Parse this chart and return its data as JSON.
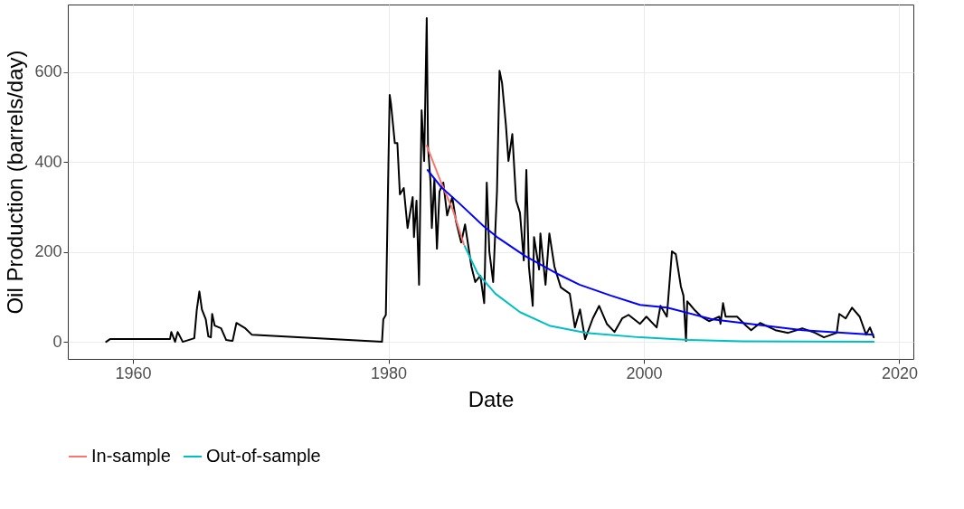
{
  "chart_data": {
    "type": "line",
    "xlabel": "Date",
    "ylabel": "Oil Production (barrels/day)",
    "xlim": [
      1954.9,
      2021.1
    ],
    "ylim": [
      -38,
      750
    ],
    "xticks": [
      1960,
      1980,
      2000,
      2020
    ],
    "yticks": [
      0,
      200,
      400,
      600
    ],
    "grid": true,
    "legend": "bottom",
    "series": [
      {
        "color": "#000000",
        "x": [
          1957.9,
          1958.2,
          1962.9,
          1963.0,
          1963.3,
          1963.5,
          1963.9,
          1964.8,
          1965.0,
          1965.2,
          1965.4,
          1965.7,
          1965.9,
          1966.1,
          1966.2,
          1966.4,
          1966.9,
          1967.3,
          1967.8,
          1968.1,
          1968.8,
          1969.3,
          1979.5,
          1979.6,
          1979.8,
          1980.0,
          1980.1,
          1980.2,
          1980.5,
          1980.7,
          1980.9,
          1981.2,
          1981.5,
          1981.9,
          1982.0,
          1982.2,
          1982.4,
          1982.6,
          1982.8,
          1983.0,
          1983.1,
          1983.3,
          1983.4,
          1983.6,
          1983.8,
          1984.0,
          1984.3,
          1984.6,
          1985.0,
          1985.3,
          1985.7,
          1986.0,
          1986.5,
          1986.8,
          1987.2,
          1987.5,
          1987.7,
          1987.9,
          1988.2,
          1988.5,
          1988.7,
          1988.9,
          1989.2,
          1989.4,
          1989.7,
          1990.0,
          1990.3,
          1990.6,
          1990.8,
          1991.0,
          1991.3,
          1991.4,
          1991.8,
          1991.9,
          1992.3,
          1992.6,
          1993.0,
          1993.5,
          1994.2,
          1994.6,
          1995.0,
          1995.4,
          1996.0,
          1996.5,
          1997.1,
          1997.7,
          1998.3,
          1998.8,
          1999.7,
          2000.2,
          2001.0,
          2001.3,
          2001.8,
          2002.2,
          2002.5,
          2002.9,
          2003.1,
          2003.3,
          2003.4,
          2004.0,
          2004.5,
          2005.1,
          2005.9,
          2006.0,
          2006.2,
          2006.4,
          2007.3,
          2008.0,
          2008.4,
          2009.1,
          2010.3,
          2011.3,
          2012.4,
          2013.4,
          2014.1,
          2015.1,
          2015.3,
          2015.8,
          2016.3,
          2016.9,
          2017.4,
          2017.7,
          2018.0
        ],
        "values": [
          0,
          6,
          6,
          22,
          0,
          22,
          0,
          8,
          72,
          112,
          72,
          50,
          12,
          10,
          62,
          36,
          30,
          4,
          2,
          42,
          30,
          16,
          0,
          50,
          60,
          394,
          549,
          529,
          442,
          442,
          328,
          342,
          253,
          322,
          233,
          314,
          127,
          515,
          402,
          720,
          434,
          354,
          253,
          362,
          207,
          334,
          354,
          281,
          322,
          267,
          221,
          261,
          167,
          133,
          147,
          86,
          354,
          201,
          133,
          334,
          603,
          575,
          482,
          402,
          462,
          314,
          287,
          181,
          382,
          167,
          80,
          233,
          161,
          241,
          127,
          241,
          167,
          121,
          107,
          32,
          72,
          6,
          52,
          80,
          40,
          22,
          52,
          60,
          40,
          56,
          32,
          80,
          56,
          201,
          195,
          123,
          103,
          2,
          90,
          70,
          56,
          46,
          56,
          40,
          86,
          56,
          56,
          36,
          26,
          42,
          26,
          20,
          30,
          20,
          10,
          20,
          62,
          52,
          76,
          56,
          16,
          32,
          10
        ]
      },
      {
        "name": "In-sample",
        "color": "#f8766d",
        "x": [
          1983.0,
          1984.13,
          1985.05,
          1985.9
        ],
        "values": [
          436,
          354,
          293,
          217
        ]
      },
      {
        "name": "Out-of-sample",
        "color": "#00bfc4",
        "x": [
          1985.97,
          1986.97,
          1988.38,
          1990.3,
          1992.6,
          1995.5,
          1999.7,
          2003.5,
          2007.7,
          2018.0
        ],
        "values": [
          213,
          153,
          107,
          66,
          36,
          20,
          10,
          4,
          1,
          0
        ]
      },
      {
        "color": "#0000ff",
        "x": [
          1983.07,
          1984.13,
          1985.55,
          1987.46,
          1988.6,
          1990.7,
          1993.1,
          1994.96,
          1997.4,
          1999.7,
          2001.83,
          2005.37,
          2012.44,
          2017.96
        ],
        "values": [
          382,
          344,
          308,
          257,
          231,
          191,
          153,
          127,
          103,
          82,
          76,
          50,
          26,
          16
        ]
      }
    ]
  }
}
